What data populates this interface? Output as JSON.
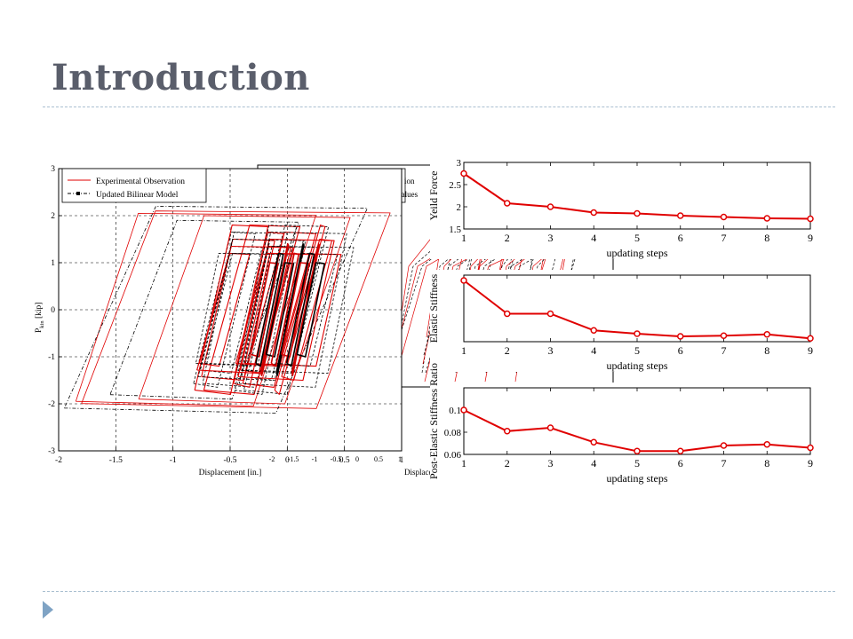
{
  "slide": {
    "title": "Introduction"
  },
  "chart_data": [
    {
      "type": "line",
      "title": "",
      "xlabel": "Displacement [in.]",
      "ylabel": "P",
      "ylabel_sub": "kin",
      "ylabel_unit": " [kip]",
      "xlim": [
        -2,
        1
      ],
      "ylim": [
        -3,
        3
      ],
      "xticks": [
        -2,
        -1.5,
        -1,
        -0.5,
        0,
        0.5,
        1
      ],
      "yticks": [
        -3,
        -2,
        -1,
        0,
        1,
        2,
        3
      ],
      "grid": true,
      "legend": "top-left",
      "series": [
        {
          "name": "Experimental Observation",
          "color": "#e00000",
          "style": "solid"
        },
        {
          "name": "Updated Bilinear Model",
          "color": "#000000",
          "style": "dash-dot"
        }
      ]
    },
    {
      "type": "line",
      "title": "",
      "xlabel": "Displacement [in.]",
      "xticks": [
        -2,
        -1.5,
        -1,
        -0.5,
        0,
        0.5,
        1
      ],
      "grid": true,
      "legend": "top-left",
      "legend_fragments": [
        "ion",
        "itial Values"
      ],
      "note": "second hysteresis plot, mostly covered by the overlapping panels"
    },
    {
      "type": "line",
      "xlabel": "updating steps",
      "ylabel": "Yeild Force",
      "x": [
        1,
        2,
        3,
        4,
        5,
        6,
        7,
        8,
        9
      ],
      "xticks": [
        1,
        2,
        3,
        4,
        5,
        6,
        7,
        8,
        9
      ],
      "values": [
        2.75,
        2.08,
        2.0,
        1.87,
        1.85,
        1.8,
        1.77,
        1.74,
        1.73
      ],
      "ylim": [
        1.5,
        3
      ],
      "yticks": [
        1.5,
        2,
        2.5,
        3
      ],
      "color": "#e00000",
      "grid": false
    },
    {
      "type": "line",
      "xlabel": "updating steps",
      "ylabel": "Elastic Stiffness",
      "x": [
        1,
        2,
        3,
        4,
        5,
        6,
        7,
        8,
        9
      ],
      "xticks": [
        1,
        2,
        3,
        4,
        5,
        6,
        7,
        8,
        9
      ],
      "values": [
        0.92,
        0.42,
        0.42,
        0.17,
        0.12,
        0.08,
        0.09,
        0.11,
        0.05
      ],
      "ylim": [
        0,
        1
      ],
      "yticks": [],
      "color": "#e00000",
      "grid": false
    },
    {
      "type": "line",
      "xlabel": "updating steps",
      "ylabel": "Post-Elastic Stiffness Ratio",
      "x": [
        1,
        2,
        3,
        4,
        5,
        6,
        7,
        8,
        9
      ],
      "xticks": [
        1,
        2,
        3,
        4,
        5,
        6,
        7,
        8,
        9
      ],
      "values": [
        0.1,
        0.081,
        0.084,
        0.071,
        0.063,
        0.063,
        0.068,
        0.069,
        0.066
      ],
      "ylim": [
        0.06,
        0.12
      ],
      "yticks": [
        0.06,
        0.08,
        0.1
      ],
      "color": "#e00000",
      "grid": false
    }
  ]
}
